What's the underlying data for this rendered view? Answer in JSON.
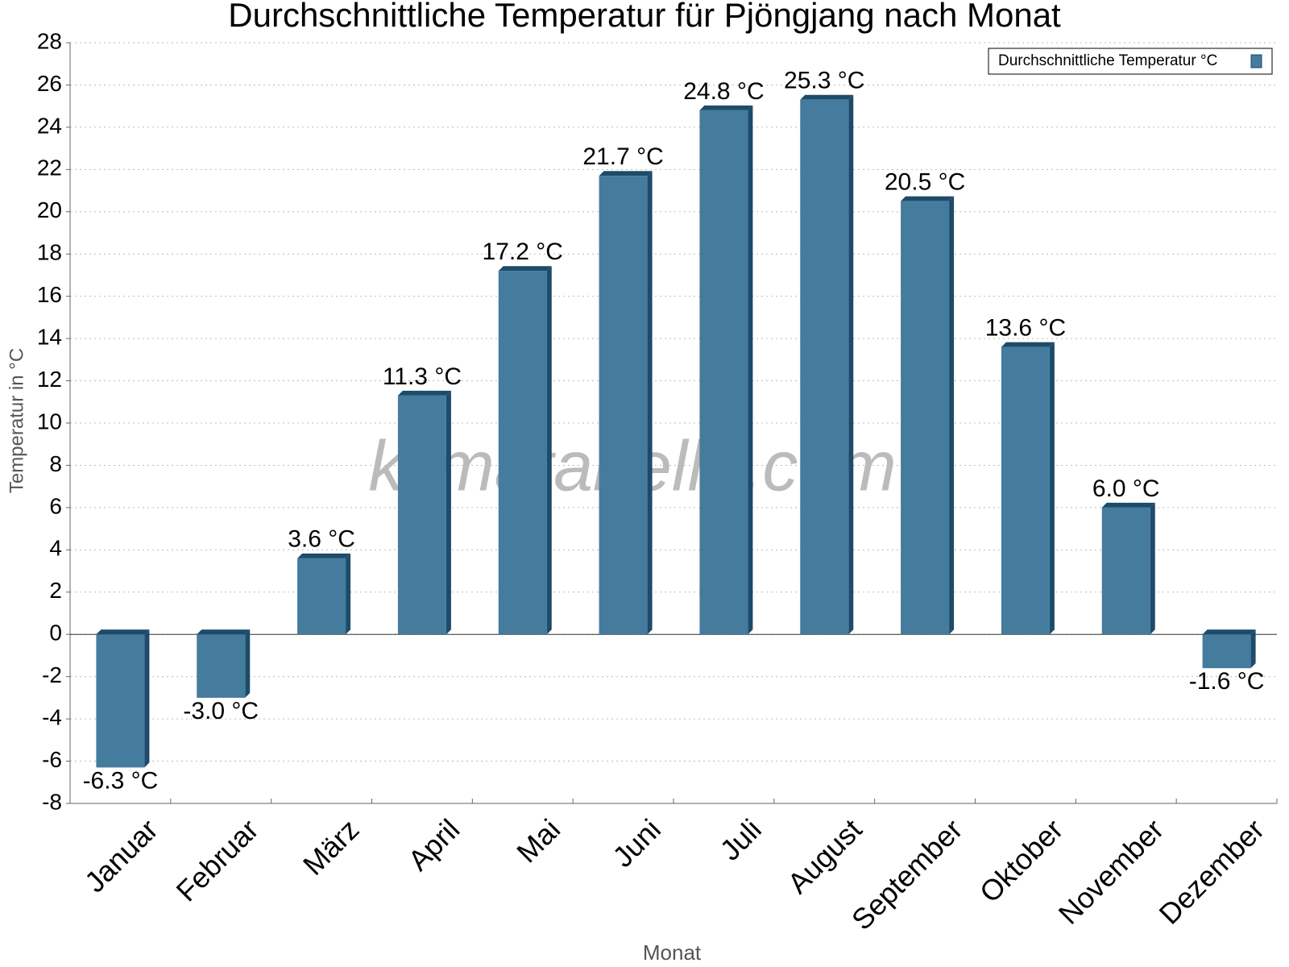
{
  "chart_data": {
    "type": "bar",
    "title": "Durchschnittliche Temperatur für Pjöngjang nach Monat",
    "x_label": "Monat",
    "y_label": "Temperatur in °C",
    "watermark": "klimatabelle.com",
    "categories": [
      "Januar",
      "Februar",
      "März",
      "April",
      "Mai",
      "Juni",
      "Juli",
      "August",
      "September",
      "Oktober",
      "November",
      "Dezember"
    ],
    "series": [
      {
        "name": "Durchschnittliche Temperatur °C",
        "color": "#457b9d",
        "values": [
          -6.3,
          -3.0,
          3.6,
          11.3,
          17.2,
          21.7,
          24.8,
          25.3,
          20.5,
          13.6,
          6.0,
          -1.6
        ],
        "value_labels": [
          "-6.3 °C",
          "-3.0 °C",
          "3.6 °C",
          "11.3 °C",
          "17.2 °C",
          "21.7 °C",
          "24.8 °C",
          "25.3 °C",
          "20.5 °C",
          "13.6 °C",
          "6.0 °C",
          "-1.6 °C"
        ]
      }
    ],
    "ylim": [
      -8,
      28
    ],
    "yticks": [
      -8,
      -6,
      -4,
      -2,
      0,
      2,
      4,
      6,
      8,
      10,
      12,
      14,
      16,
      18,
      20,
      22,
      24,
      26,
      28
    ],
    "grid": true,
    "legend": "upper right"
  }
}
